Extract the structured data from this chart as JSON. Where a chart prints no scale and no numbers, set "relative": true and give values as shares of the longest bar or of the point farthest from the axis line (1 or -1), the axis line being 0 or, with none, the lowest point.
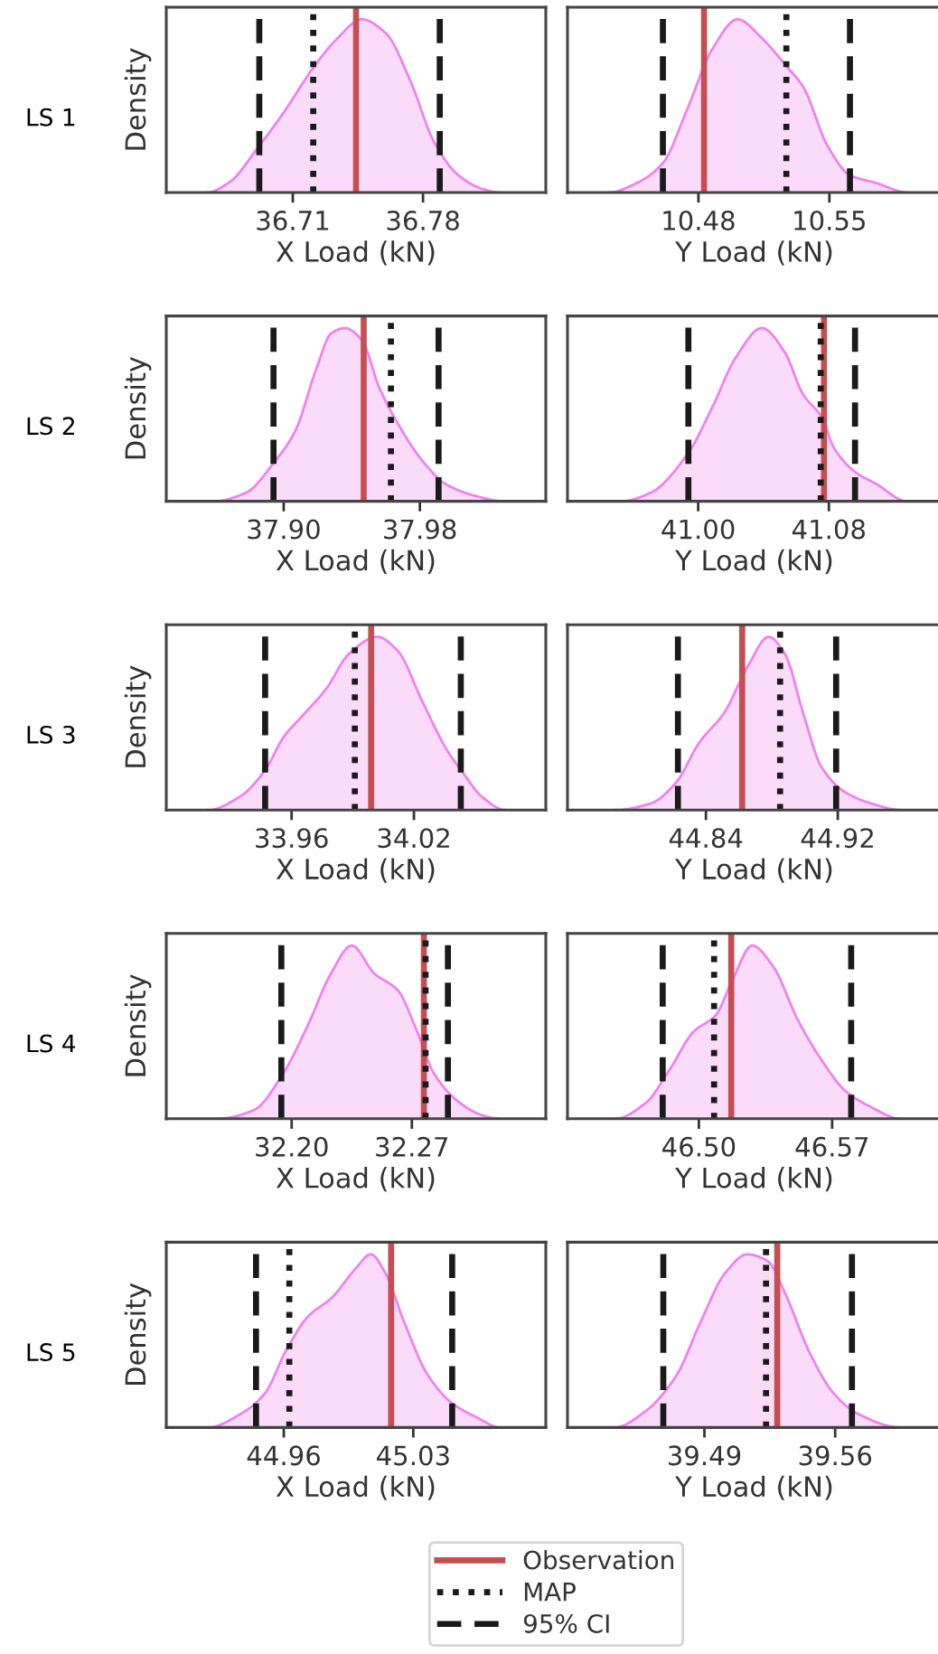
{
  "chart_data": [
    {
      "type": "area",
      "xlabel": "X Load (kN)",
      "ylabel": "Density",
      "annotations": [
        "LS 1"
      ],
      "relative": true,
      "xlim": [
        36.642,
        36.846
      ],
      "xticks": [
        36.71,
        36.78
      ],
      "legend": "bottom",
      "series": [
        {
          "color": "#ee82ee",
          "x": [
            36.664,
            36.676,
            36.692,
            36.705,
            36.721,
            36.734,
            36.747,
            36.76,
            36.773,
            36.786,
            36.799,
            36.812,
            36.821
          ],
          "values": [
            0,
            0.06,
            0.27,
            0.46,
            0.72,
            0.89,
            1.0,
            0.92,
            0.65,
            0.29,
            0.1,
            0.02,
            0
          ]
        }
      ],
      "ref_lines": [
        {
          "axis": "x",
          "value": 36.744,
          "label": "Observation",
          "color": "#c44e52",
          "line_style": "solid"
        },
        {
          "axis": "x",
          "value": 36.721,
          "label": "MAP",
          "color": "#1a1a1a",
          "line_style": "dotted"
        },
        {
          "axis": "x",
          "value": 36.692,
          "label": "95% CI",
          "color": "#1a1a1a",
          "line_style": "dashed"
        },
        {
          "axis": "x",
          "value": 36.789,
          "color": "#1a1a1a",
          "line_style": "dashed"
        }
      ]
    },
    {
      "type": "area",
      "xlabel": "Y Load (kN)",
      "relative": true,
      "xlim": [
        10.41,
        10.61
      ],
      "xticks": [
        10.48,
        10.55
      ],
      "series": [
        {
          "color": "#ee82ee",
          "x": [
            10.432,
            10.448,
            10.461,
            10.474,
            10.487,
            10.501,
            10.514,
            10.527,
            10.536,
            10.549,
            10.561,
            10.575,
            10.592
          ],
          "values": [
            0,
            0.06,
            0.17,
            0.48,
            0.82,
            1.0,
            0.89,
            0.73,
            0.61,
            0.27,
            0.1,
            0.055,
            0
          ]
        }
      ],
      "ref_lines": [
        {
          "axis": "x",
          "value": 10.483,
          "color": "#c44e52",
          "line_style": "solid"
        },
        {
          "axis": "x",
          "value": 10.527,
          "color": "#1a1a1a",
          "line_style": "dotted"
        },
        {
          "axis": "x",
          "value": 10.461,
          "color": "#1a1a1a",
          "line_style": "dashed"
        },
        {
          "axis": "x",
          "value": 10.561,
          "color": "#1a1a1a",
          "line_style": "dashed"
        }
      ]
    },
    {
      "type": "area",
      "xlabel": "X Load (kN)",
      "ylabel": "Density",
      "annotations": [
        "LS 2"
      ],
      "relative": true,
      "xlim": [
        37.831,
        38.054
      ],
      "xticks": [
        {
          "value": 37.9,
          "label": "37.90"
        },
        37.98
      ],
      "series": [
        {
          "color": "#ee82ee",
          "x": [
            37.859,
            37.878,
            37.894,
            37.907,
            37.919,
            37.928,
            37.936,
            37.946,
            37.956,
            37.967,
            37.981,
            37.995,
            38.013,
            38.029
          ],
          "values": [
            0,
            0.05,
            0.22,
            0.41,
            0.76,
            0.97,
            1.0,
            0.93,
            0.66,
            0.45,
            0.24,
            0.1,
            0.03,
            0
          ]
        }
      ],
      "ref_lines": [
        {
          "axis": "x",
          "value": 37.947,
          "color": "#c44e52",
          "line_style": "solid"
        },
        {
          "axis": "x",
          "value": 37.963,
          "color": "#1a1a1a",
          "line_style": "dotted"
        },
        {
          "axis": "x",
          "value": 37.894,
          "color": "#1a1a1a",
          "line_style": "dashed"
        },
        {
          "axis": "x",
          "value": 37.991,
          "color": "#1a1a1a",
          "line_style": "dashed"
        }
      ]
    },
    {
      "type": "area",
      "xlabel": "Y Load (kN)",
      "relative": true,
      "xlim": [
        40.92,
        41.149
      ],
      "xticks": [
        {
          "value": 41.0,
          "label": "41.00"
        },
        41.08
      ],
      "series": [
        {
          "color": "#ee82ee",
          "x": [
            40.953,
            40.971,
            40.994,
            41.009,
            41.023,
            41.039,
            41.053,
            41.064,
            41.076,
            41.083,
            41.096,
            41.109,
            41.128
          ],
          "values": [
            0,
            0.05,
            0.28,
            0.55,
            0.83,
            1.0,
            0.86,
            0.62,
            0.48,
            0.31,
            0.17,
            0.1,
            0
          ]
        }
      ],
      "ref_lines": [
        {
          "axis": "x",
          "value": 41.077,
          "color": "#c44e52",
          "line_style": "solid"
        },
        {
          "axis": "x",
          "value": 41.075,
          "color": "#1a1a1a",
          "line_style": "dotted"
        },
        {
          "axis": "x",
          "value": 40.994,
          "color": "#1a1a1a",
          "line_style": "dashed"
        },
        {
          "axis": "x",
          "value": 41.096,
          "color": "#1a1a1a",
          "line_style": "dashed"
        }
      ]
    },
    {
      "type": "area",
      "xlabel": "X Load (kN)",
      "ylabel": "Density",
      "annotations": [
        "LS 3"
      ],
      "relative": true,
      "xlim": [
        33.8985,
        34.0847
      ],
      "xticks": [
        33.96,
        34.02
      ],
      "series": [
        {
          "color": "#ee82ee",
          "x": [
            33.919,
            33.935,
            33.947,
            33.956,
            33.965,
            33.977,
            33.988,
            34.002,
            34.012,
            34.024,
            34.036,
            34.045,
            34.053,
            34.065
          ],
          "values": [
            0,
            0.08,
            0.23,
            0.42,
            0.54,
            0.7,
            0.9,
            1.0,
            0.92,
            0.63,
            0.35,
            0.2,
            0.08,
            0
          ]
        }
      ],
      "ref_lines": [
        {
          "axis": "x",
          "value": 33.999,
          "color": "#c44e52",
          "line_style": "solid"
        },
        {
          "axis": "x",
          "value": 33.991,
          "color": "#1a1a1a",
          "line_style": "dotted"
        },
        {
          "axis": "x",
          "value": 33.947,
          "color": "#1a1a1a",
          "line_style": "dashed"
        },
        {
          "axis": "x",
          "value": 34.043,
          "color": "#1a1a1a",
          "line_style": "dashed"
        }
      ]
    },
    {
      "type": "area",
      "xlabel": "Y Load (kN)",
      "relative": true,
      "xlim": [
        44.756,
        44.983
      ],
      "xticks": [
        44.84,
        44.92
      ],
      "series": [
        {
          "color": "#ee82ee",
          "x": [
            44.785,
            44.807,
            44.822,
            44.836,
            44.851,
            44.866,
            44.878,
            44.888,
            44.899,
            44.91,
            44.925,
            44.943,
            44.958
          ],
          "values": [
            0,
            0.04,
            0.16,
            0.39,
            0.56,
            0.84,
            1.0,
            0.9,
            0.56,
            0.25,
            0.1,
            0.03,
            0
          ]
        }
      ],
      "ref_lines": [
        {
          "axis": "x",
          "value": 44.862,
          "color": "#c44e52",
          "line_style": "solid"
        },
        {
          "axis": "x",
          "value": 44.885,
          "color": "#1a1a1a",
          "line_style": "dotted"
        },
        {
          "axis": "x",
          "value": 44.823,
          "color": "#1a1a1a",
          "line_style": "dashed"
        },
        {
          "axis": "x",
          "value": 44.919,
          "color": "#1a1a1a",
          "line_style": "dashed"
        }
      ]
    },
    {
      "type": "area",
      "xlabel": "X Load (kN)",
      "ylabel": "Density",
      "annotations": [
        "LS 4"
      ],
      "relative": true,
      "xlim": [
        32.127,
        32.348
      ],
      "xticks": [
        {
          "value": 32.2,
          "label": "32.20"
        },
        32.27
      ],
      "series": [
        {
          "color": "#ee82ee",
          "x": [
            32.157,
            32.178,
            32.195,
            32.209,
            32.223,
            32.235,
            32.248,
            32.262,
            32.272,
            32.283,
            32.297,
            32.311,
            32.321
          ],
          "values": [
            0,
            0.05,
            0.26,
            0.53,
            0.84,
            1.0,
            0.84,
            0.74,
            0.53,
            0.26,
            0.1,
            0.02,
            0
          ]
        }
      ],
      "ref_lines": [
        {
          "axis": "x",
          "value": 32.277,
          "color": "#c44e52",
          "line_style": "solid"
        },
        {
          "axis": "x",
          "value": 32.278,
          "color": "#1a1a1a",
          "line_style": "dotted"
        },
        {
          "axis": "x",
          "value": 32.194,
          "color": "#1a1a1a",
          "line_style": "dashed"
        },
        {
          "axis": "x",
          "value": 32.291,
          "color": "#1a1a1a",
          "line_style": "dashed"
        }
      ]
    },
    {
      "type": "area",
      "xlabel": "Y Load (kN)",
      "relative": true,
      "xlim": [
        46.431,
        46.6275
      ],
      "xticks": [
        {
          "value": 46.5,
          "label": "46.50"
        },
        46.57
      ],
      "series": [
        {
          "color": "#ee82ee",
          "x": [
            46.456,
            46.472,
            46.485,
            46.497,
            46.509,
            46.518,
            46.528,
            46.539,
            46.552,
            46.565,
            46.577,
            46.59,
            46.606
          ],
          "values": [
            0,
            0.09,
            0.29,
            0.5,
            0.6,
            0.81,
            1.0,
            0.88,
            0.57,
            0.33,
            0.16,
            0.07,
            0
          ]
        }
      ],
      "ref_lines": [
        {
          "axis": "x",
          "value": 46.517,
          "color": "#c44e52",
          "line_style": "solid"
        },
        {
          "axis": "x",
          "value": 46.508,
          "color": "#1a1a1a",
          "line_style": "dotted"
        },
        {
          "axis": "x",
          "value": 46.481,
          "color": "#1a1a1a",
          "line_style": "dashed"
        },
        {
          "axis": "x",
          "value": 46.58,
          "color": "#1a1a1a",
          "line_style": "dashed"
        }
      ]
    },
    {
      "type": "area",
      "xlabel": "X Load (kN)",
      "ylabel": "Density",
      "annotations": [
        "LS 5"
      ],
      "relative": true,
      "xlim": [
        44.8965,
        45.1016
      ],
      "xticks": [
        44.96,
        45.03
      ],
      "series": [
        {
          "color": "#ee82ee",
          "x": [
            44.919,
            44.937,
            44.95,
            44.961,
            44.973,
            44.986,
            44.999,
            45.007,
            45.015,
            45.025,
            45.038,
            45.051,
            45.064,
            45.077
          ],
          "values": [
            0,
            0.08,
            0.2,
            0.44,
            0.64,
            0.75,
            0.92,
            1.0,
            0.89,
            0.61,
            0.3,
            0.14,
            0.06,
            0
          ]
        }
      ],
      "ref_lines": [
        {
          "axis": "x",
          "value": 45.018,
          "color": "#c44e52",
          "line_style": "solid"
        },
        {
          "axis": "x",
          "value": 44.963,
          "color": "#1a1a1a",
          "line_style": "dotted"
        },
        {
          "axis": "x",
          "value": 44.945,
          "color": "#1a1a1a",
          "line_style": "dashed"
        },
        {
          "axis": "x",
          "value": 45.051,
          "color": "#1a1a1a",
          "line_style": "dashed"
        }
      ]
    },
    {
      "type": "area",
      "xlabel": "Y Load (kN)",
      "relative": true,
      "xlim": [
        39.4167,
        39.617
      ],
      "xticks": [
        39.49,
        39.56
      ],
      "series": [
        {
          "color": "#ee82ee",
          "x": [
            39.442,
            39.458,
            39.475,
            39.488,
            39.501,
            39.513,
            39.524,
            39.533,
            39.546,
            39.559,
            39.572,
            39.595
          ],
          "values": [
            0,
            0.09,
            0.3,
            0.61,
            0.89,
            1.0,
            0.96,
            0.78,
            0.44,
            0.2,
            0.08,
            0
          ]
        }
      ],
      "ref_lines": [
        {
          "axis": "x",
          "value": 39.529,
          "color": "#c44e52",
          "line_style": "solid"
        },
        {
          "axis": "x",
          "value": 39.523,
          "color": "#1a1a1a",
          "line_style": "dotted"
        },
        {
          "axis": "x",
          "value": 39.468,
          "color": "#1a1a1a",
          "line_style": "dashed"
        },
        {
          "axis": "x",
          "value": 39.569,
          "color": "#1a1a1a",
          "line_style": "dashed"
        }
      ]
    }
  ]
}
